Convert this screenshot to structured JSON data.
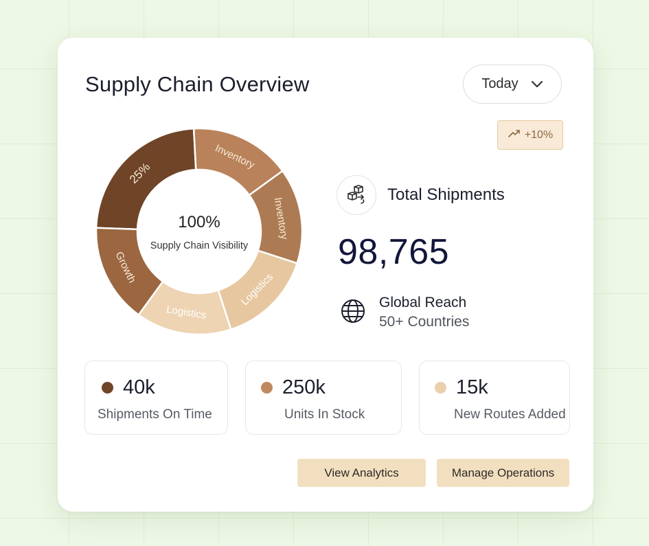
{
  "header": {
    "title": "Supply Chain Overview",
    "range_select_value": "Today"
  },
  "trend": {
    "label": "+10%",
    "icon": "trending-up-icon"
  },
  "donut": {
    "center_value": "100%",
    "center_label": "Supply Chain Visibility",
    "segments": [
      {
        "label": "25%",
        "color": "#6f4427"
      },
      {
        "label": "Inventory",
        "color": "#b9825a"
      },
      {
        "label": "Inventory",
        "color": "#ad7b53"
      },
      {
        "label": "Logistics",
        "color": "#e6c7a0"
      },
      {
        "label": "Logistics",
        "color": "#eed4b3"
      },
      {
        "label": "Growth",
        "color": "#9b6640"
      }
    ]
  },
  "shipments": {
    "icon": "boxes-icon",
    "label": "Total Shipments",
    "value": "98,765"
  },
  "reach": {
    "icon": "globe-icon",
    "title": "Global Reach",
    "subtitle": "50+ Countries"
  },
  "stats": [
    {
      "value": "40k",
      "label": "Shipments On Time",
      "color": "#6f4427"
    },
    {
      "value": "250k",
      "label": "Units In Stock",
      "color": "#c08a5f"
    },
    {
      "value": "15k",
      "label": "New Routes Added",
      "color": "#eccfac"
    }
  ],
  "actions": {
    "view_analytics": "View Analytics",
    "manage_operations": "Manage Operations"
  }
}
